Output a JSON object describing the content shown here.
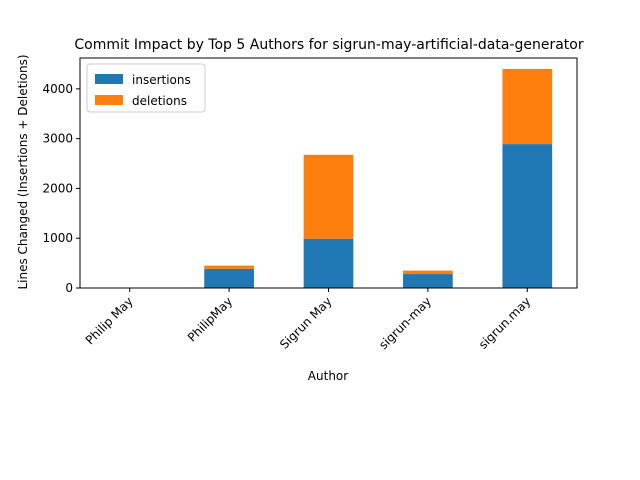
{
  "chart_data": {
    "type": "bar",
    "stacked": true,
    "title": "Commit Impact by Top 5 Authors for sigrun-may-artificial-data-generator",
    "xlabel": "Author",
    "ylabel": "Lines Changed (Insertions + Deletions)",
    "categories": [
      "Philip May",
      "PhilipMay",
      "Sigrun May",
      "sigrun-may",
      "sigrun.may"
    ],
    "series": [
      {
        "name": "insertions",
        "color": "#1f77b4",
        "values": [
          0,
          385,
          990,
          280,
          2890
        ]
      },
      {
        "name": "deletions",
        "color": "#ff7f0e",
        "values": [
          0,
          65,
          1685,
          70,
          1510
        ]
      }
    ],
    "yticks": [
      0,
      1000,
      2000,
      3000,
      4000
    ],
    "ylim": [
      0,
      4620
    ],
    "legend": "top-left",
    "grid": false
  }
}
